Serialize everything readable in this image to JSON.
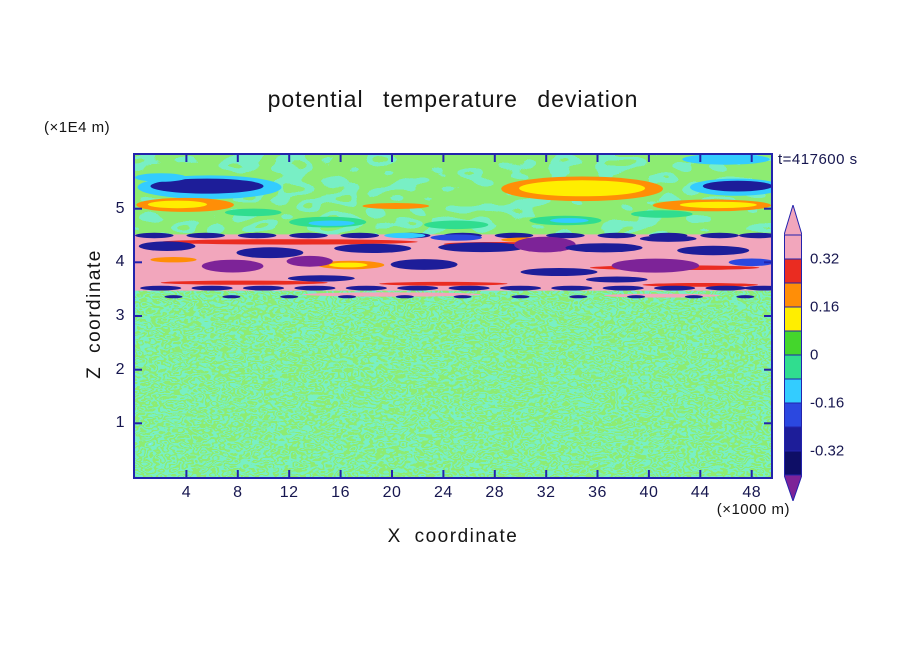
{
  "chart_data": {
    "type": "heatmap",
    "subtype": "filled-contour",
    "title": "potential temperature deviation",
    "time_label": "t=417600 s",
    "xlabel": "X coordinate",
    "ylabel": "Z coordinate",
    "x_unit_label": "(×1000 m)",
    "y_unit_label": "(×1E4 m)",
    "xlim": [
      0,
      49.5
    ],
    "ylim": [
      0,
      6
    ],
    "x_ticks": [
      4,
      8,
      12,
      16,
      20,
      24,
      28,
      32,
      36,
      40,
      44,
      48
    ],
    "y_ticks": [
      1,
      2,
      3,
      4,
      5
    ],
    "grid": false,
    "legend_position": "right-colorbar",
    "colorbar": {
      "labels": [
        "0.32",
        "0.16",
        "0",
        "-0.16",
        "-0.32"
      ],
      "boundaries": [
        0.4,
        0.32,
        0.24,
        0.16,
        0.08,
        0,
        -0.08,
        -0.16,
        -0.24,
        -0.32,
        -0.4
      ],
      "segments": [
        "pink",
        "red",
        "orange",
        "yellow",
        "green",
        "spring",
        "cyan",
        "blue",
        "navy",
        "darknavy"
      ],
      "arrow_top": "pink",
      "arrow_bottom": "purple"
    },
    "palette": {
      "pink": "#f2a6bc",
      "red": "#ea2c21",
      "orange": "#ff8e07",
      "yellow": "#ffee00",
      "green": "#44d62c",
      "spring": "#30dd8f",
      "cyan": "#33ccff",
      "blue": "#2b48e0",
      "navy": "#1d1d99",
      "darknavy": "#0e0e66",
      "purple": "#7d2398",
      "band_pink": "#f2a6bc",
      "frame": "#2323ad",
      "tick_text": "#16164f",
      "text": "#141414"
    },
    "regions": [
      {
        "name": "base-field",
        "z0": 0,
        "z1": 6,
        "fill": "spring"
      },
      {
        "name": "upper-green-layer",
        "z0": 4.52,
        "z1": 6,
        "texture": "upper"
      },
      {
        "name": "lower-turbulent-layer",
        "z0": 0,
        "z1": 3.47,
        "texture": "lower"
      },
      {
        "name": "inversion-band",
        "z0": 3.47,
        "z1": 4.52,
        "fill": "band_pink"
      }
    ],
    "features": [
      {
        "c": "cyan",
        "x": 5.8,
        "z": 5.4,
        "rx": 5.6,
        "rz": 0.22
      },
      {
        "c": "navy",
        "x": 5.6,
        "z": 5.42,
        "rx": 4.4,
        "rz": 0.14
      },
      {
        "c": "orange",
        "x": 3.9,
        "z": 5.07,
        "rx": 3.8,
        "rz": 0.13
      },
      {
        "c": "yellow",
        "x": 3.3,
        "z": 5.08,
        "rx": 2.3,
        "rz": 0.07
      },
      {
        "c": "spring",
        "x": 9.2,
        "z": 4.93,
        "rx": 2.2,
        "rz": 0.07
      },
      {
        "c": "orange",
        "x": 20.3,
        "z": 5.05,
        "rx": 2.6,
        "rz": 0.055
      },
      {
        "c": "orange",
        "x": 34.8,
        "z": 5.37,
        "rx": 6.3,
        "rz": 0.23
      },
      {
        "c": "yellow",
        "x": 34.8,
        "z": 5.38,
        "rx": 4.9,
        "rz": 0.15
      },
      {
        "c": "orange",
        "x": 44.9,
        "z": 5.06,
        "rx": 4.6,
        "rz": 0.11
      },
      {
        "c": "yellow",
        "x": 45.4,
        "z": 5.07,
        "rx": 3.0,
        "rz": 0.06
      },
      {
        "c": "cyan",
        "x": 46.0,
        "z": 5.92,
        "rx": 3.4,
        "rz": 0.1
      },
      {
        "c": "cyan",
        "x": 46.8,
        "z": 5.4,
        "rx": 3.6,
        "rz": 0.16
      },
      {
        "c": "navy",
        "x": 46.9,
        "z": 5.42,
        "rx": 2.7,
        "rz": 0.1
      },
      {
        "c": "spring",
        "x": 15.0,
        "z": 4.75,
        "rx": 3.0,
        "rz": 0.1
      },
      {
        "c": "cyan",
        "x": 15.3,
        "z": 4.73,
        "rx": 1.8,
        "rz": 0.05
      },
      {
        "c": "spring",
        "x": 25.0,
        "z": 4.7,
        "rx": 2.5,
        "rz": 0.08
      },
      {
        "c": "spring",
        "x": 33.5,
        "z": 4.78,
        "rx": 2.8,
        "rz": 0.09
      },
      {
        "c": "cyan",
        "x": 33.8,
        "z": 4.78,
        "rx": 1.5,
        "rz": 0.045
      },
      {
        "c": "spring",
        "x": 41.0,
        "z": 4.9,
        "rx": 2.4,
        "rz": 0.07
      },
      {
        "c": "cyan",
        "x": 2.0,
        "z": 5.58,
        "rx": 2.0,
        "rz": 0.08
      },
      {
        "c": "navy",
        "z": 4.5,
        "rx": 1.5,
        "rz": 0.05,
        "xs": [
          1.5,
          5.5,
          9.5,
          13.5,
          17.5,
          21.5,
          25.5,
          29.5,
          33.5,
          37.5,
          41.5,
          45.5,
          48.5
        ]
      },
      {
        "c": "red",
        "x": 12.0,
        "z": 4.38,
        "rx": 10.0,
        "rz": 0.05
      },
      {
        "c": "red",
        "x": 28.0,
        "z": 4.34,
        "rx": 4.0,
        "rz": 0.04
      },
      {
        "c": "red",
        "x": 42.0,
        "z": 3.9,
        "rx": 6.6,
        "rz": 0.045
      },
      {
        "c": "red",
        "x": 8.5,
        "z": 3.62,
        "rx": 6.5,
        "rz": 0.04
      },
      {
        "c": "red",
        "x": 24.0,
        "z": 3.6,
        "rx": 5.0,
        "rz": 0.035
      },
      {
        "c": "red",
        "x": 44.0,
        "z": 3.58,
        "rx": 4.5,
        "rz": 0.035
      },
      {
        "c": "orange",
        "x": 16.8,
        "z": 3.95,
        "rx": 2.6,
        "rz": 0.08
      },
      {
        "c": "yellow",
        "x": 16.6,
        "z": 3.95,
        "rx": 1.5,
        "rz": 0.045
      },
      {
        "c": "orange",
        "x": 30.5,
        "z": 4.42,
        "rx": 2.0,
        "rz": 0.045
      },
      {
        "c": "orange",
        "x": 3.0,
        "z": 4.05,
        "rx": 1.8,
        "rz": 0.05
      },
      {
        "c": "navy",
        "x": 2.5,
        "z": 4.3,
        "rx": 2.2,
        "rz": 0.09
      },
      {
        "c": "navy",
        "x": 10.5,
        "z": 4.18,
        "rx": 2.6,
        "rz": 0.1
      },
      {
        "c": "purple",
        "x": 13.6,
        "z": 4.02,
        "rx": 1.8,
        "rz": 0.1
      },
      {
        "c": "navy",
        "x": 18.5,
        "z": 4.26,
        "rx": 3.0,
        "rz": 0.085
      },
      {
        "c": "cyan",
        "x": 21.0,
        "z": 4.5,
        "rx": 1.6,
        "rz": 0.05
      },
      {
        "c": "blue",
        "x": 25.0,
        "z": 4.46,
        "rx": 2.0,
        "rz": 0.06
      },
      {
        "c": "navy",
        "x": 27.0,
        "z": 4.28,
        "rx": 3.4,
        "rz": 0.09
      },
      {
        "c": "purple",
        "x": 31.9,
        "z": 4.33,
        "rx": 2.4,
        "rz": 0.145
      },
      {
        "c": "navy",
        "x": 36.5,
        "z": 4.27,
        "rx": 3.0,
        "rz": 0.085
      },
      {
        "c": "navy",
        "x": 41.5,
        "z": 4.44,
        "rx": 2.2,
        "rz": 0.06
      },
      {
        "c": "navy",
        "x": 45.0,
        "z": 4.22,
        "rx": 2.8,
        "rz": 0.09
      },
      {
        "c": "purple",
        "x": 7.6,
        "z": 3.93,
        "rx": 2.4,
        "rz": 0.12
      },
      {
        "c": "navy",
        "x": 22.5,
        "z": 3.96,
        "rx": 2.6,
        "rz": 0.1
      },
      {
        "c": "purple",
        "x": 40.5,
        "z": 3.94,
        "rx": 3.4,
        "rz": 0.13
      },
      {
        "c": "blue",
        "x": 48.0,
        "z": 4.0,
        "rx": 1.8,
        "rz": 0.07
      },
      {
        "c": "navy",
        "x": 14.5,
        "z": 3.7,
        "rx": 2.6,
        "rz": 0.06
      },
      {
        "c": "navy",
        "x": 33.0,
        "z": 3.82,
        "rx": 3.0,
        "rz": 0.075
      },
      {
        "c": "navy",
        "x": 37.5,
        "z": 3.68,
        "rx": 2.4,
        "rz": 0.055
      },
      {
        "c": "navy",
        "z": 3.52,
        "rx": 1.6,
        "rz": 0.045,
        "xs": [
          2,
          6,
          10,
          14,
          18,
          22,
          26,
          30,
          34,
          38,
          42,
          46,
          49
        ]
      },
      {
        "c": "pink",
        "x": 20.0,
        "z": 3.4,
        "rx": 7.0,
        "rz": 0.04
      },
      {
        "c": "pink",
        "x": 41.0,
        "z": 3.38,
        "rx": 4.5,
        "rz": 0.035
      },
      {
        "c": "navy",
        "z": 3.36,
        "rx": 0.7,
        "rz": 0.03,
        "xs": [
          3,
          7.5,
          12,
          16.5,
          21,
          25.5,
          30,
          34.5,
          39,
          43.5,
          47.5
        ]
      }
    ]
  }
}
